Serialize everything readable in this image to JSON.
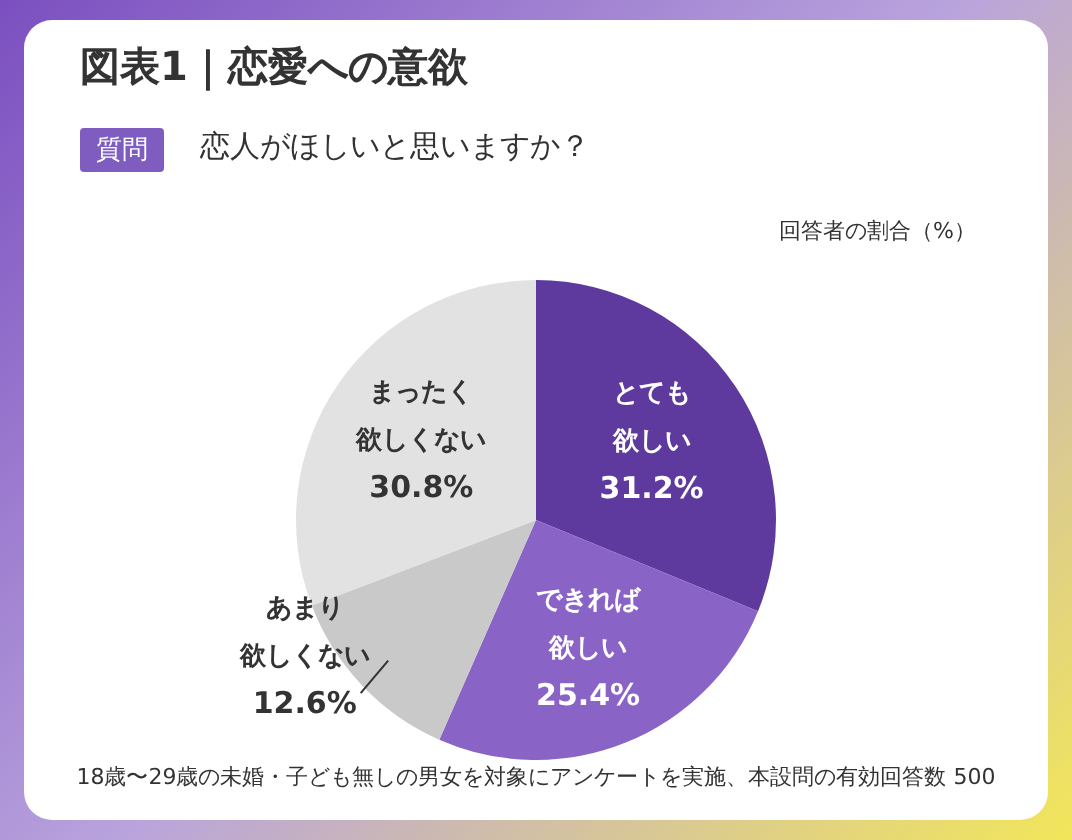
{
  "chart_data": {
    "type": "pie",
    "title": "図表1｜恋愛への意欲",
    "subtitle": "恋人がほしいと思いますか？",
    "legend_title": "質問",
    "categories": [
      "とても欲しい",
      "できれば欲しい",
      "あまり欲しくない",
      "まったく欲しくない"
    ],
    "values": [
      31.2,
      25.4,
      12.6,
      30.8
    ],
    "value_labels": [
      "31.2%",
      "25.4%",
      "12.6%",
      "30.8%"
    ],
    "colors": [
      "#5e3a9e",
      "#8a63c6",
      "#c9c9c9",
      "#e2e2e2"
    ],
    "annotations": [
      "回答者の割合（%）",
      "18歳〜29歳の未婚・子ども無しの男女を対象にアンケートを実施、本設問の有効回答数 500"
    ]
  }
}
